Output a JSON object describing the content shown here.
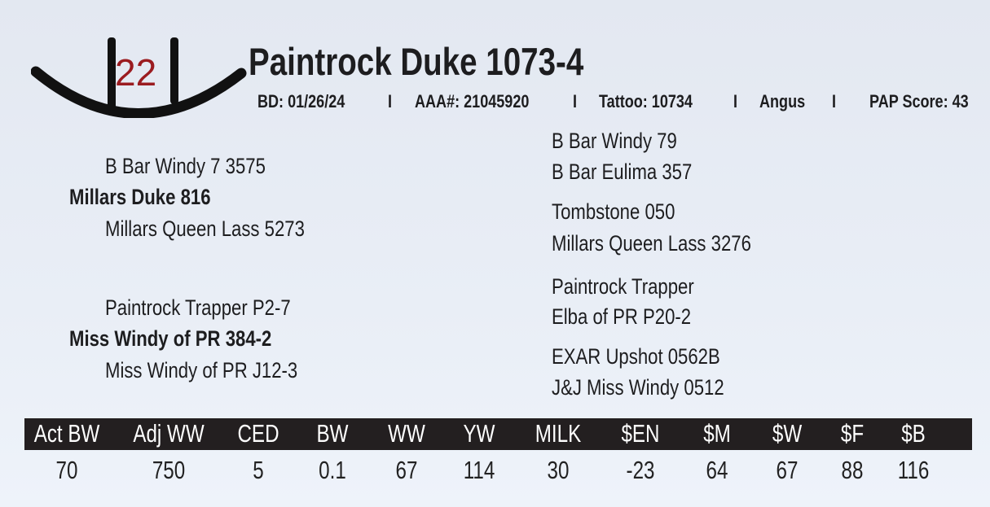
{
  "lot_number": "22",
  "accent_color": "#9b1c20",
  "title": "Paintrock Duke 1073-4",
  "details": {
    "bd": "BD: 01/26/24",
    "aaa": "AAA#: 21045920",
    "tattoo": "Tattoo:  10734",
    "breed": "Angus",
    "pap": "PAP Score: 43",
    "separator": "I"
  },
  "pedigree": {
    "sire": "Millars Duke 816",
    "sire_sire": "B Bar Windy 7 3575",
    "sire_dam": "Millars Queen Lass 5273",
    "dam": "Miss Windy of PR 384-2",
    "dam_sire": "Paintrock Trapper P2-7",
    "dam_dam": "Miss Windy of PR J12-3",
    "outer": [
      "B Bar Windy 79",
      "B Bar Eulima 357",
      "Tombstone 050",
      "Millars Queen Lass 3276",
      "Paintrock Trapper",
      "Elba of PR P20-2",
      "EXAR Upshot 0562B",
      "J&J Miss Windy 0512"
    ]
  },
  "table": {
    "headers": [
      "Act BW",
      "Adj WW",
      "CED",
      "BW",
      "WW",
      "YW",
      "MILK",
      "$EN",
      "$M",
      "$W",
      "$F",
      "$B"
    ],
    "values": [
      "70",
      "750",
      "5",
      "0.1",
      "67",
      "114",
      "30",
      "-23",
      "64",
      "67",
      "88",
      "116"
    ]
  }
}
